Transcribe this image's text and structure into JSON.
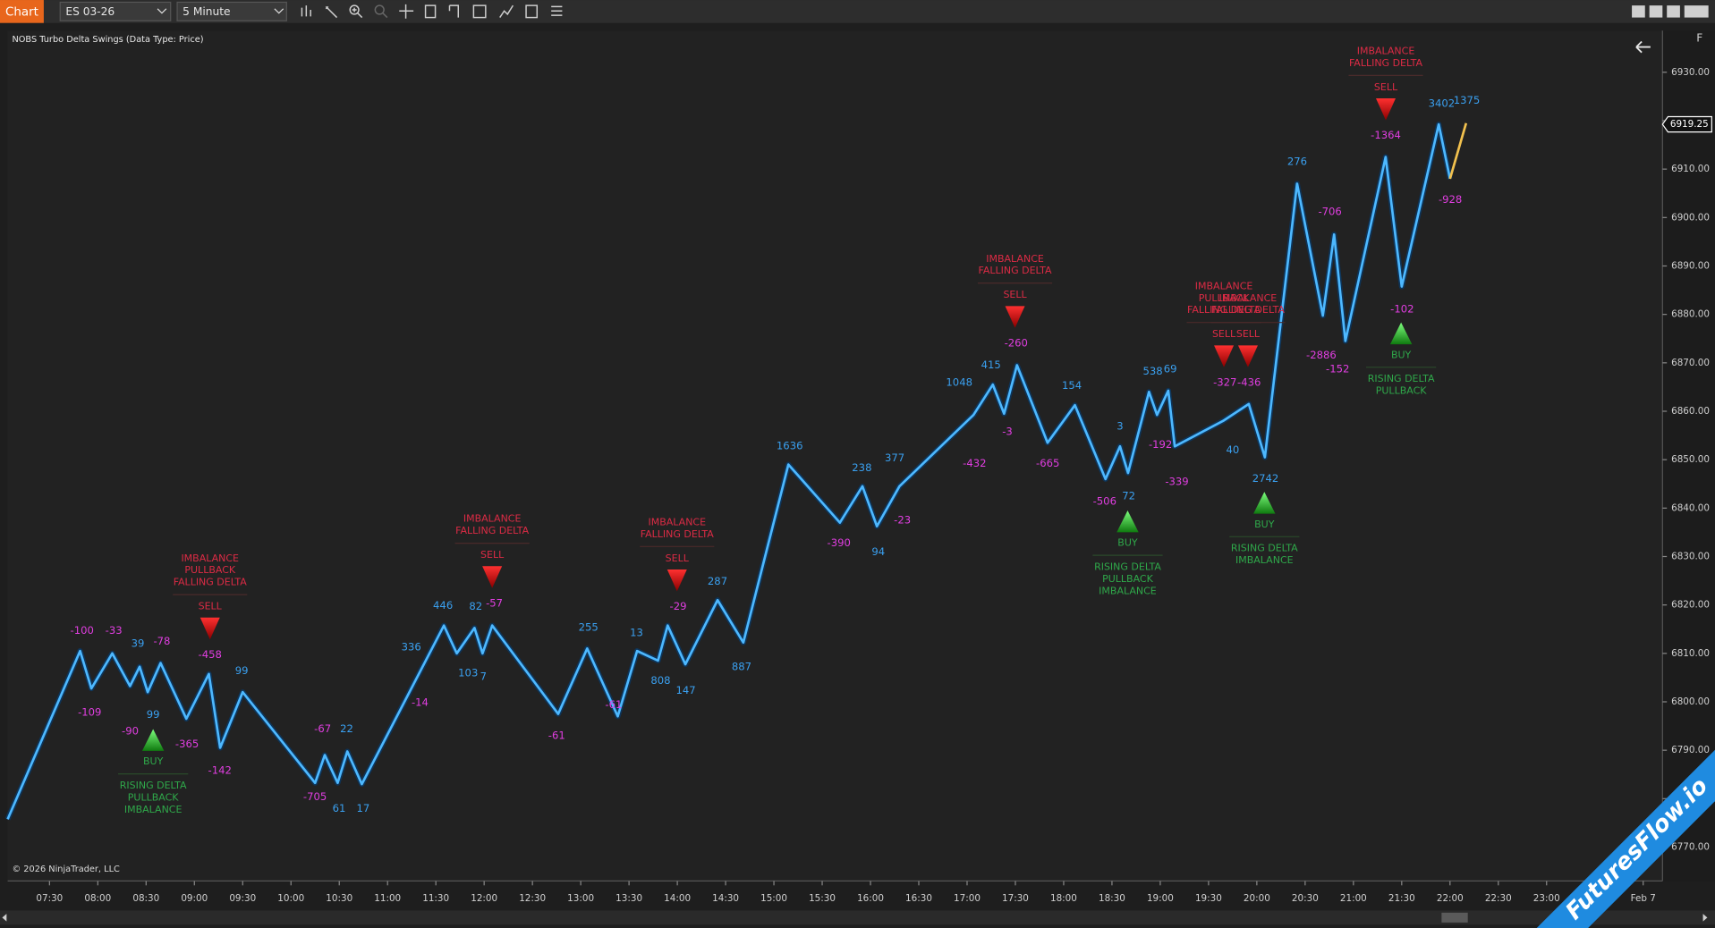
{
  "toolbar": {
    "tab": "Chart",
    "instrument": "ES 03-26",
    "interval": "5 Minute"
  },
  "indicator_label": "NOBS Turbo Delta Swings (Data Type: Price)",
  "copyright": "© 2026 NinjaTrader, LLC",
  "panel_button": "F",
  "watermark": "FuturesFlow.io",
  "chart_data": {
    "type": "line",
    "x": [
      424,
      469,
      476,
      489,
      500,
      506,
      511,
      519,
      535,
      549,
      556,
      570,
      615,
      621,
      629,
      635,
      644,
      695,
      703,
      714,
      719,
      725,
      766,
      784,
      803,
      815,
      828,
      834,
      845,
      865,
      881,
      909,
      941,
      955,
      964,
      978,
      1024,
      1036,
      1043,
      1051,
      1070,
      1087,
      1106,
      1115,
      1120,
      1133,
      1138,
      1145,
      1149,
      1179,
      1195,
      1205,
      1225,
      1241,
      1248,
      1255,
      1280,
      1290,
      1313,
      1320,
      1330
    ],
    "series": [
      {
        "color": "#4db8ff",
        "values": [
          6775.75,
          6810.5,
          6802.75,
          6810,
          6803.25,
          6807.25,
          6802,
          6808,
          6796.5,
          6805.75,
          6790.5,
          6802,
          6783.25,
          6789,
          6783.25,
          6789.75,
          6783,
          6815.75,
          6810,
          6815.25,
          6810,
          6815.75,
          6797.5,
          6811,
          6797,
          6810.5,
          6808.5,
          6815.75,
          6807.75,
          6821,
          6812.25,
          6849,
          6837,
          6844.5,
          6836.25,
          6844.5,
          6859.25,
          6865.5,
          6859.5,
          6869.5,
          6853.5,
          6861.25,
          6846,
          6852.75,
          6847.25,
          6864,
          6859.25,
          6864.25,
          6852.75,
          6858,
          6861.5,
          6850.5,
          6907,
          6879.75,
          6896.5,
          6874.5,
          6912.5,
          6885.75,
          6919.25,
          6908,
          6919.5
        ]
      }
    ],
    "active_leg_color": "#f2c14e",
    "xlim": [
      424,
      1452
    ],
    "ylim": [
      6763,
      6938.6
    ],
    "xticks": [
      {
        "value": 450,
        "label": "07:30"
      },
      {
        "value": 480,
        "label": "08:00"
      },
      {
        "value": 510,
        "label": "08:30"
      },
      {
        "value": 540,
        "label": "09:00"
      },
      {
        "value": 570,
        "label": "09:30"
      },
      {
        "value": 600,
        "label": "10:00"
      },
      {
        "value": 630,
        "label": "10:30"
      },
      {
        "value": 660,
        "label": "11:00"
      },
      {
        "value": 690,
        "label": "11:30"
      },
      {
        "value": 720,
        "label": "12:00"
      },
      {
        "value": 750,
        "label": "12:30"
      },
      {
        "value": 780,
        "label": "13:00"
      },
      {
        "value": 810,
        "label": "13:30"
      },
      {
        "value": 840,
        "label": "14:00"
      },
      {
        "value": 870,
        "label": "14:30"
      },
      {
        "value": 900,
        "label": "15:00"
      },
      {
        "value": 930,
        "label": "15:30"
      },
      {
        "value": 960,
        "label": "16:00"
      },
      {
        "value": 990,
        "label": "16:30"
      },
      {
        "value": 1020,
        "label": "17:00"
      },
      {
        "value": 1050,
        "label": "17:30"
      },
      {
        "value": 1080,
        "label": "18:00"
      },
      {
        "value": 1110,
        "label": "18:30"
      },
      {
        "value": 1140,
        "label": "19:00"
      },
      {
        "value": 1170,
        "label": "19:30"
      },
      {
        "value": 1200,
        "label": "20:00"
      },
      {
        "value": 1230,
        "label": "20:30"
      },
      {
        "value": 1260,
        "label": "21:00"
      },
      {
        "value": 1290,
        "label": "21:30"
      },
      {
        "value": 1320,
        "label": "22:00"
      },
      {
        "value": 1350,
        "label": "22:30"
      },
      {
        "value": 1380,
        "label": "23:00"
      },
      {
        "value": 1440,
        "label": "Feb 7"
      }
    ],
    "yticks": [
      {
        "value": 6770,
        "label": "6770.00"
      },
      {
        "value": 6780,
        "label": "6780.00"
      },
      {
        "value": 6790,
        "label": "6790.00"
      },
      {
        "value": 6800,
        "label": "6800.00"
      },
      {
        "value": 6810,
        "label": "6810.00"
      },
      {
        "value": 6820,
        "label": "6820.00"
      },
      {
        "value": 6830,
        "label": "6830.00"
      },
      {
        "value": 6840,
        "label": "6840.00"
      },
      {
        "value": 6850,
        "label": "6850.00"
      },
      {
        "value": 6860,
        "label": "6860.00"
      },
      {
        "value": 6870,
        "label": "6870.00"
      },
      {
        "value": 6880,
        "label": "6880.00"
      },
      {
        "value": 6890,
        "label": "6890.00"
      },
      {
        "value": 6900,
        "label": "6900.00"
      },
      {
        "value": 6910,
        "label": "6910.00"
      },
      {
        "value": 6920,
        "label": "6920.00"
      },
      {
        "value": 6930,
        "label": "6930.00"
      }
    ],
    "grid": false,
    "last_price": 6919.25,
    "last_price_color": "#ffffff",
    "delta_colors": {
      "positive": "#3aa0f0",
      "negative": "#e03ee0"
    },
    "delta_labels": [
      -100,
      -33,
      39,
      -78,
      -109,
      -90,
      99,
      -365,
      -458,
      99,
      -142,
      -67,
      22,
      -705,
      61,
      17,
      336,
      -14,
      446,
      82,
      -57,
      103,
      7,
      -61,
      255,
      13,
      -61,
      808,
      147,
      -29,
      287,
      887,
      1636,
      238,
      377,
      -390,
      94,
      -23,
      1048,
      415,
      -3,
      -432,
      -260,
      -665,
      154,
      3,
      -506,
      72,
      538,
      69,
      -192,
      -339,
      40,
      -327,
      -436,
      2742,
      276,
      -706,
      -2886,
      -152,
      -1364,
      -102,
      3402,
      1375,
      -928
    ],
    "signal_colors": {
      "SELL": "#dc2b45",
      "BUY": "#2fa84a"
    },
    "signals": [
      {
        "signal": "SELL",
        "lines": [
          "IMBALANCE",
          "PULLBACK",
          "FALLING DELTA"
        ]
      },
      {
        "signal": "SELL",
        "lines": [
          "IMBALANCE",
          "FALLING DELTA"
        ]
      },
      {
        "signal": "SELL",
        "lines": [
          "IMBALANCE",
          "FALLING DELTA"
        ]
      },
      {
        "signal": "SELL",
        "lines": [
          "IMBALANCE",
          "FALLING DELTA"
        ]
      },
      {
        "signal": "SELL",
        "lines": [
          "IMBALANCE",
          "PULLBACK",
          "FALLING DELTA"
        ]
      },
      {
        "signal": "SELL",
        "lines": [
          "IMBALANCE",
          "FALLING DELTA"
        ]
      },
      {
        "signal": "SELL",
        "lines": [
          "IMBALANCE",
          "FALLING DELTA"
        ]
      },
      {
        "signal": "BUY",
        "lines": [
          "RISING DELTA",
          "PULLBACK",
          "IMBALANCE"
        ]
      },
      {
        "signal": "BUY",
        "lines": [
          "RISING DELTA",
          "PULLBACK",
          "IMBALANCE"
        ]
      },
      {
        "signal": "BUY",
        "lines": [
          "RISING DELTA",
          "IMBALANCE"
        ]
      },
      {
        "signal": "BUY",
        "lines": [
          "RISING DELTA",
          "PULLBACK"
        ]
      }
    ]
  }
}
